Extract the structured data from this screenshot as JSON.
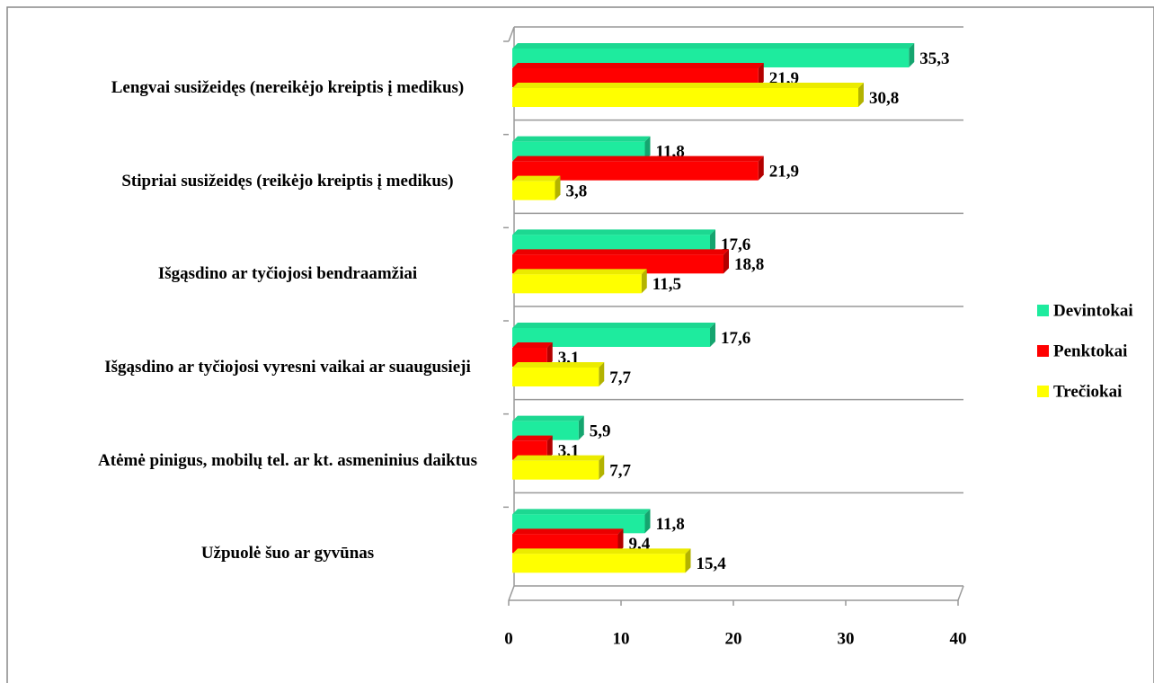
{
  "chart_data": {
    "type": "bar",
    "orientation": "horizontal",
    "categories": [
      "Lengvai susižeidęs (nereikėjo kreiptis į medikus)",
      "Stipriai susižeidęs (reikėjo kreiptis į medikus)",
      "Išgąsdino ar tyčiojosi bendraamžiai",
      "Išgąsdino ar tyčiojosi vyresni vaikai ar suaugusieji",
      "Atėmė pinigus, mobilų tel. ar kt. asmeninius daiktus",
      "Užpuolė šuo ar gyvūnas"
    ],
    "series": [
      {
        "name": "Devintokai",
        "color": "#1eeb9e",
        "values": [
          35.3,
          11.8,
          17.6,
          17.6,
          5.9,
          11.8
        ],
        "value_labels": [
          "35,3",
          "11,8",
          "17,6",
          "17,6",
          "5,9",
          "11,8"
        ]
      },
      {
        "name": "Penktokai",
        "color": "#ff0000",
        "values": [
          21.9,
          21.9,
          18.8,
          3.1,
          3.1,
          9.4
        ],
        "value_labels": [
          "21,9",
          "21,9",
          "18,8",
          "3,1",
          "3,1",
          "9,4"
        ]
      },
      {
        "name": "Trečiokai",
        "color": "#ffff00",
        "values": [
          30.8,
          3.8,
          11.5,
          7.7,
          7.7,
          15.4
        ],
        "value_labels": [
          "30,8",
          "3,8",
          "11,5",
          "7,7",
          "7,7",
          "15,4"
        ]
      }
    ],
    "xlim": [
      0,
      40
    ],
    "xticks": [
      0,
      10,
      20,
      30,
      40
    ],
    "grid": true,
    "legend": "right"
  }
}
